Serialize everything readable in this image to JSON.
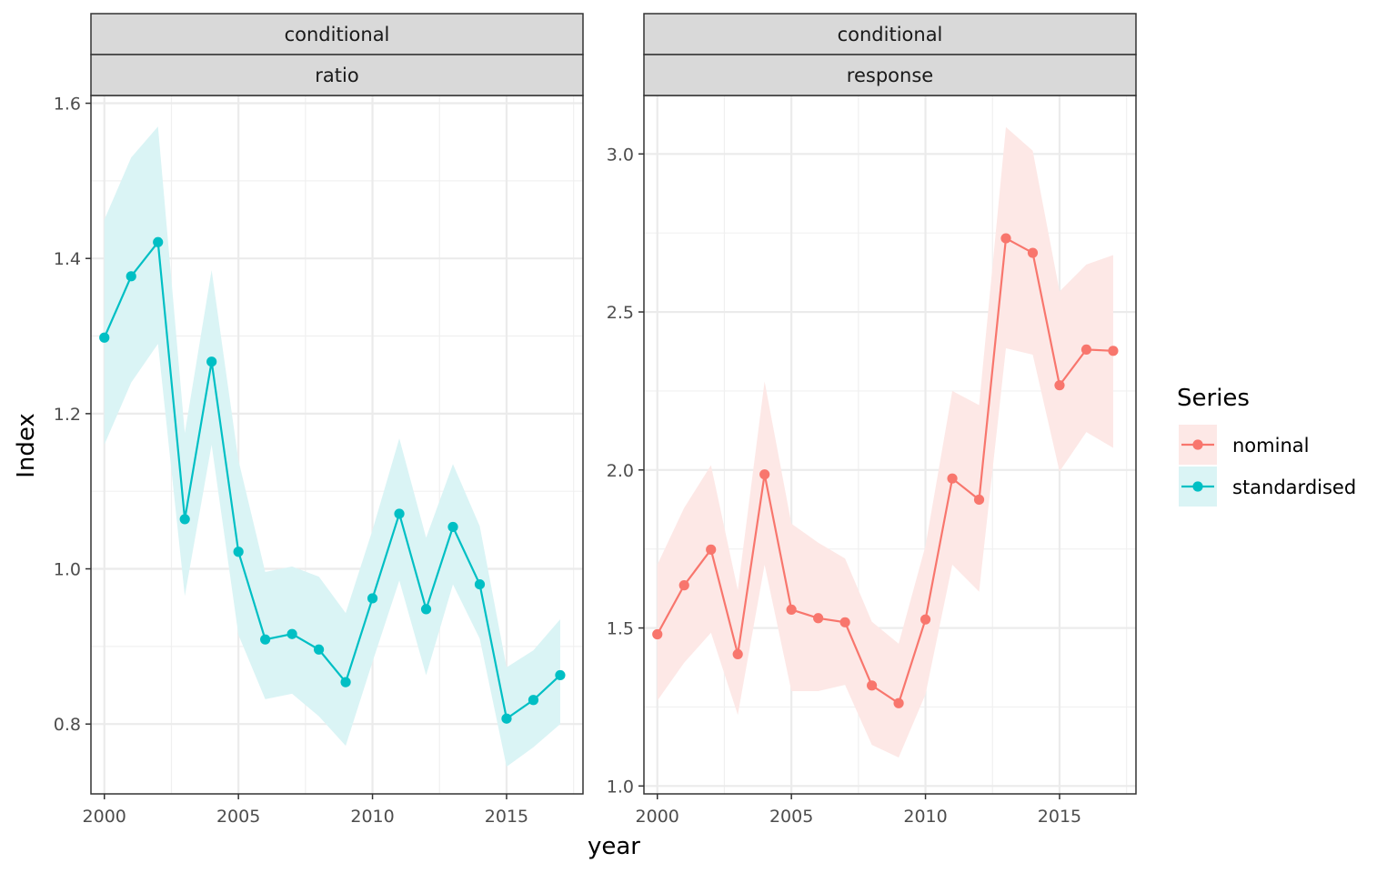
{
  "chart_data": {
    "type": "line",
    "xlabel": "year",
    "ylabel": "Index",
    "legend": {
      "title": "Series",
      "position": "right",
      "entries": [
        {
          "name": "nominal",
          "color": "#F8766D"
        },
        {
          "name": "standardised",
          "color": "#00BFC4"
        }
      ]
    },
    "grid": true,
    "panels": [
      {
        "strips": [
          "conditional",
          "ratio"
        ],
        "series_name": "standardised",
        "color": "#00BFC4",
        "band_color": "#DAF4F5",
        "xlim": [
          1999.5,
          2017.85
        ],
        "ylim": [
          0.71,
          1.61
        ],
        "x_ticks": [
          2000,
          2005,
          2010,
          2015
        ],
        "y_ticks": [
          0.8,
          1.0,
          1.2,
          1.4,
          1.6
        ],
        "y_tick_labels": [
          "0.8",
          "1.0",
          "1.2",
          "1.4",
          "1.6"
        ],
        "x": [
          2000,
          2001,
          2002,
          2003,
          2004,
          2005,
          2006,
          2007,
          2008,
          2009,
          2010,
          2011,
          2012,
          2013,
          2014,
          2015,
          2016,
          2017
        ],
        "y": [
          1.298,
          1.377,
          1.421,
          1.064,
          1.267,
          1.022,
          0.909,
          0.916,
          0.896,
          0.854,
          0.962,
          1.071,
          0.948,
          1.054,
          0.98,
          0.807,
          0.831,
          0.863
        ],
        "lower": [
          1.16,
          1.24,
          1.29,
          0.965,
          1.16,
          0.915,
          0.832,
          0.839,
          0.81,
          0.772,
          0.88,
          0.985,
          0.863,
          0.98,
          0.91,
          0.745,
          0.77,
          0.8
        ],
        "upper": [
          1.45,
          1.53,
          1.57,
          1.175,
          1.385,
          1.14,
          0.996,
          1.003,
          0.99,
          0.943,
          1.05,
          1.168,
          1.04,
          1.135,
          1.055,
          0.873,
          0.895,
          0.935
        ]
      },
      {
        "strips": [
          "conditional",
          "response"
        ],
        "series_name": "nominal",
        "color": "#F8766D",
        "band_color": "#FDE8E6",
        "xlim": [
          1999.5,
          2017.85
        ],
        "ylim": [
          0.975,
          3.185
        ],
        "x_ticks": [
          2000,
          2005,
          2010,
          2015
        ],
        "y_ticks": [
          1.0,
          1.5,
          2.0,
          2.5,
          3.0
        ],
        "y_tick_labels": [
          "1.0",
          "1.5",
          "2.0",
          "2.5",
          "3.0"
        ],
        "x": [
          2000,
          2001,
          2002,
          2003,
          2004,
          2005,
          2006,
          2007,
          2008,
          2009,
          2010,
          2011,
          2012,
          2013,
          2014,
          2015,
          2016,
          2017
        ],
        "y": [
          1.48,
          1.635,
          1.748,
          1.417,
          1.986,
          1.558,
          1.531,
          1.518,
          1.318,
          1.262,
          1.527,
          1.973,
          1.906,
          2.733,
          2.687,
          2.268,
          2.381,
          2.377
        ],
        "lower": [
          1.27,
          1.39,
          1.485,
          1.225,
          1.7,
          1.3,
          1.3,
          1.32,
          1.13,
          1.09,
          1.29,
          1.7,
          1.615,
          2.385,
          2.365,
          1.995,
          2.12,
          2.07
        ],
        "upper": [
          1.7,
          1.88,
          2.015,
          1.62,
          2.28,
          1.83,
          1.77,
          1.72,
          1.52,
          1.45,
          1.76,
          2.25,
          2.205,
          3.085,
          3.01,
          2.565,
          2.65,
          2.68
        ]
      }
    ]
  }
}
